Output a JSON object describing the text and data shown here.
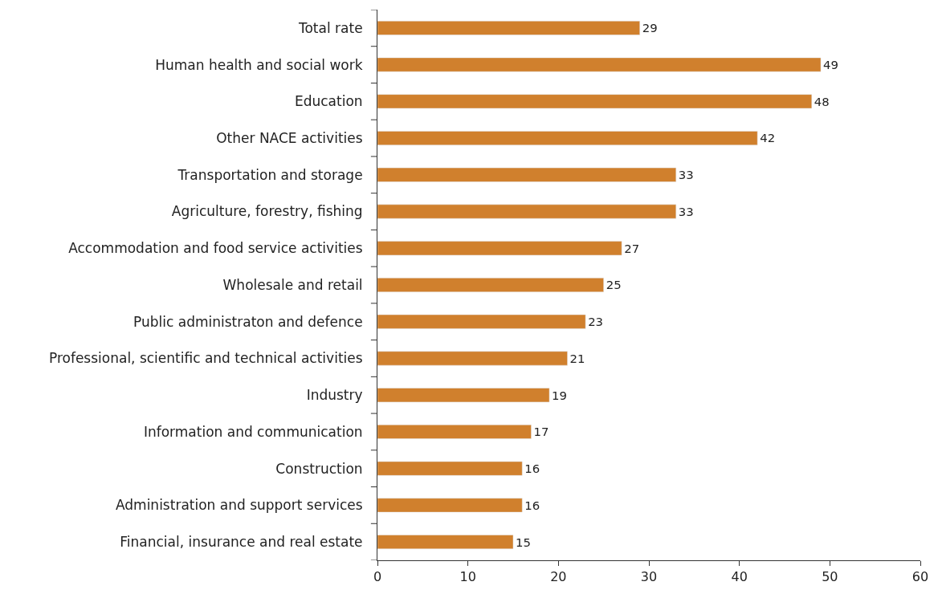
{
  "chart_data": {
    "type": "bar",
    "orientation": "horizontal",
    "categories": [
      "Total rate",
      "Human health and social work",
      "Education",
      "Other NACE activities",
      "Transportation and storage",
      "Agriculture, forestry, fishing",
      "Accommodation and food service activities",
      "Wholesale and retail",
      "Public administraton and defence",
      "Professional, scientific and technical activities",
      "Industry",
      "Information and communication",
      "Construction",
      "Administration and support services",
      "Financial, insurance and real estate"
    ],
    "values": [
      29,
      49,
      48,
      42,
      33,
      33,
      27,
      25,
      23,
      21,
      19,
      17,
      16,
      16,
      15
    ],
    "color": "#d0802d",
    "data_labels": true,
    "xlim": [
      0,
      60
    ],
    "xticks": [
      0,
      10,
      20,
      30,
      40,
      50,
      60
    ],
    "legend": false
  }
}
